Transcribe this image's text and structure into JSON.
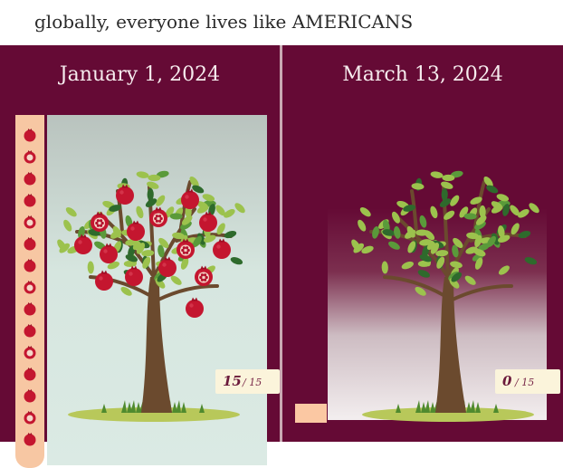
{
  "header": {
    "title": "globally, everyone lives like AMERICANS"
  },
  "left_panel": {
    "date": "January 1, 2024",
    "counter": {
      "current": "15",
      "total": "/ 15"
    },
    "fruit_in_tube": 15
  },
  "right_panel": {
    "date": "March 13, 2024",
    "counter": {
      "current": "0",
      "total": "/ 15"
    },
    "fruit_in_tube": 0
  },
  "colors": {
    "panel_bg": "#650a35",
    "tube": "#f7c7a3",
    "fruit": "#c4162f",
    "trunk": "#6b4a2e",
    "leaf_light": "#9cc24d",
    "leaf_dark": "#2e6a2c",
    "counter_bg": "#fbf4db"
  },
  "icons": {
    "fruit": "pomegranate-icon",
    "tree": "tree-icon"
  }
}
